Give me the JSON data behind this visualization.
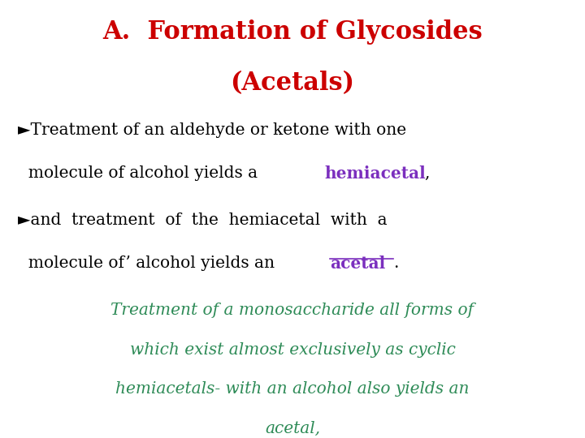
{
  "title_line1": "A.  Formation of Glycosides",
  "title_line2": "(Acetals)",
  "title_color": "#cc0000",
  "background_color": "#ffffff",
  "bullet_color": "#000000",
  "highlight_color": "#7b2fbe",
  "green_text_color": "#2e8b57",
  "bullet1_line1": "►Treatment of an aldehyde or ketone with one",
  "bullet1_line2_pre": "  molecule of alcohol yields a ",
  "bullet1_highlight": "hemiacetal",
  "bullet1_end": ",",
  "bullet2_line1": "►and  treatment  of  the  hemiacetal  with  a",
  "bullet2_line2_pre": "  molecule of’ alcohol yields an ",
  "bullet2_highlight": "acetal",
  "bullet2_end": ".",
  "green_block_lines": [
    "Treatment of a monosaccharide all forms of",
    "which exist almost exclusively as cyclic",
    "hemiacetals- with an alcohol also yields an",
    "acetal,"
  ]
}
